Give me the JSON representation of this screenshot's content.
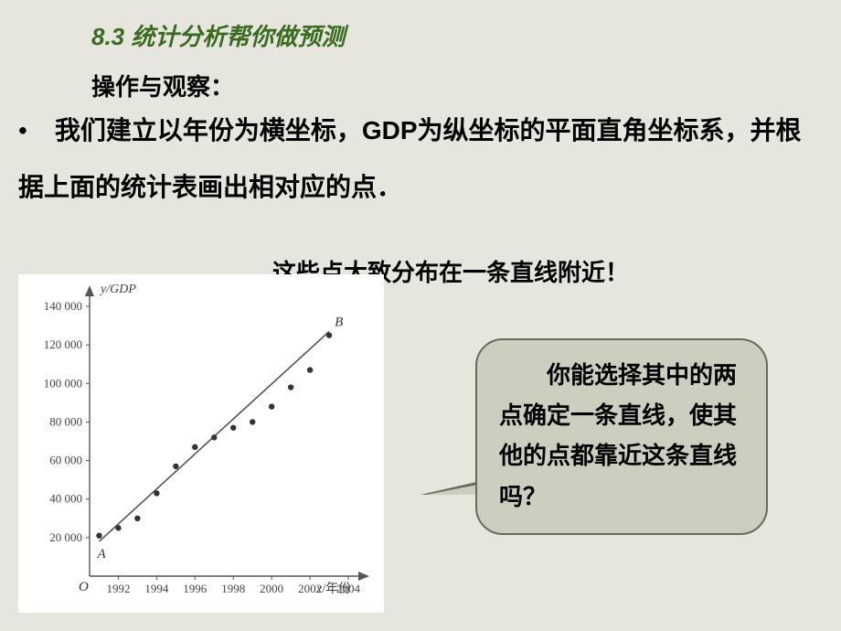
{
  "title": "8.3  统计分析帮你做预测",
  "subtitle": "操作与观察：",
  "body_line": "我们建立以年份为横坐标，GDP为纵坐标的平面直角坐标系，并根据上面的统计表画出相对应的点．",
  "bullet": "•",
  "conclusion": "这些点大致分布在一条直线附近！",
  "speech": "　　你能选择其中的两点确定一条直线，使其他的点都靠近这条直线吗？",
  "chart": {
    "type": "scatter+line",
    "background_color": "#ffffff",
    "axis_color": "#555555",
    "point_color": "#333333",
    "line_color": "#555555",
    "y_label": "y/GDP",
    "x_label": "x/年份",
    "origin_label": "O",
    "line_start_label": "A",
    "line_end_label": "B",
    "x_ticks": [
      1992,
      1994,
      1996,
      1998,
      2000,
      2002,
      2004
    ],
    "y_ticks": [
      20000,
      40000,
      60000,
      80000,
      100000,
      120000,
      140000
    ],
    "y_tick_labels": [
      "20 000",
      "40 000",
      "60 000",
      "80 000",
      "100 000",
      "120 000",
      "140 000"
    ],
    "xlim": [
      1990.5,
      2005
    ],
    "ylim": [
      0,
      150000
    ],
    "points": [
      {
        "x": 1991,
        "y": 21000
      },
      {
        "x": 1992,
        "y": 25000
      },
      {
        "x": 1993,
        "y": 30000
      },
      {
        "x": 1994,
        "y": 43000
      },
      {
        "x": 1995,
        "y": 57000
      },
      {
        "x": 1996,
        "y": 67000
      },
      {
        "x": 1997,
        "y": 72000
      },
      {
        "x": 1998,
        "y": 77000
      },
      {
        "x": 1999,
        "y": 80000
      },
      {
        "x": 2000,
        "y": 88000
      },
      {
        "x": 2001,
        "y": 98000
      },
      {
        "x": 2002,
        "y": 107000
      },
      {
        "x": 2003,
        "y": 125000
      }
    ],
    "line": {
      "x1": 1991,
      "y1": 18000,
      "x2": 2003,
      "y2": 127000
    },
    "point_radius": 3.2,
    "line_width": 1.6,
    "axis_width": 1.4,
    "tick_len": 4
  }
}
